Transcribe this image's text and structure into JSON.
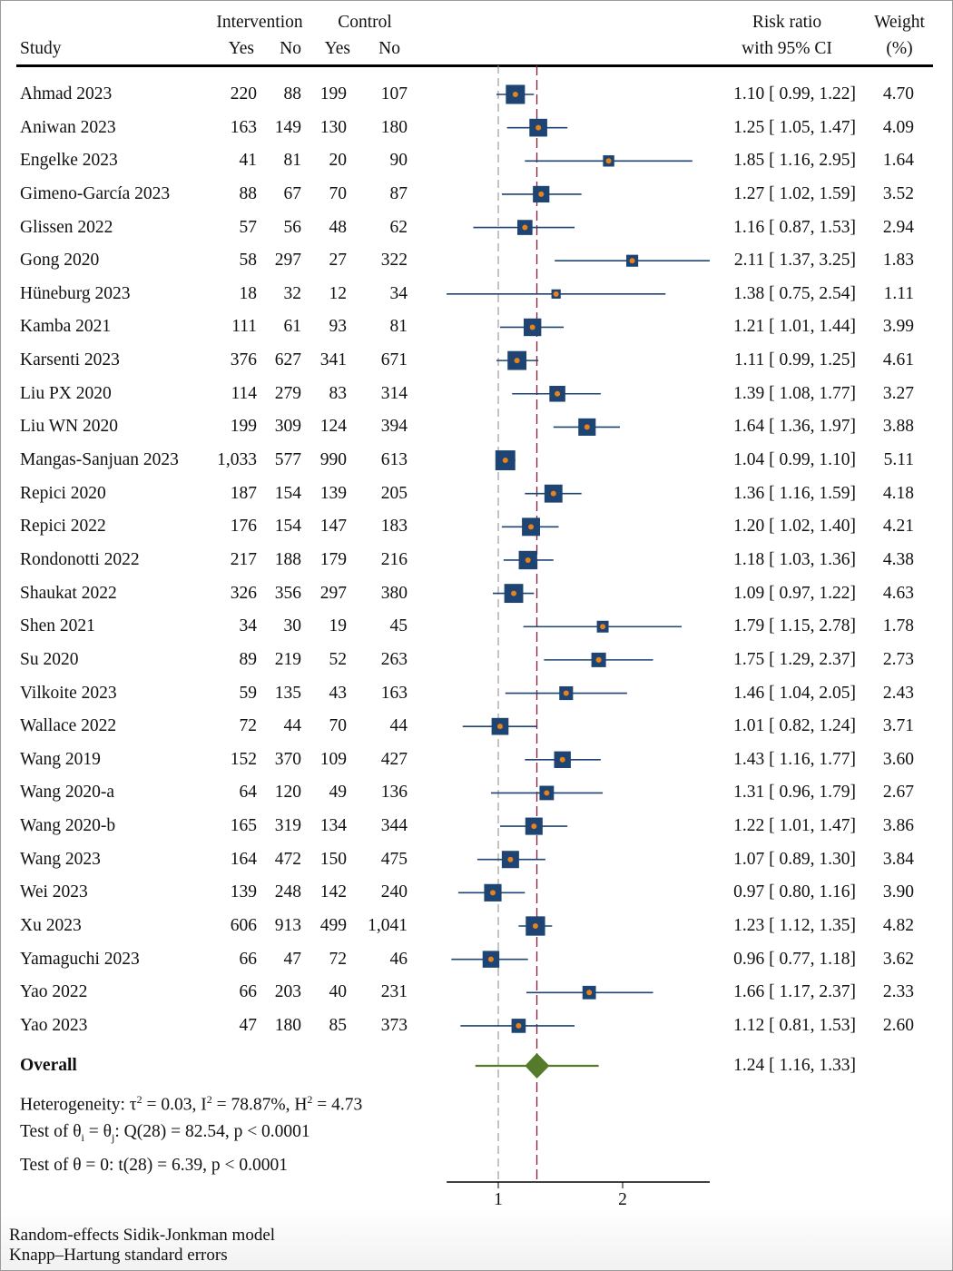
{
  "chart_data": {
    "type": "forest",
    "scale": "log",
    "xlim": [
      0.75,
      3.25
    ],
    "xticks": [
      1,
      2
    ],
    "null_line": 1,
    "headers": {
      "study": "Study",
      "intervention": "Intervention",
      "control": "Control",
      "yes": "Yes",
      "no": "No",
      "rr_line1": "Risk ratio",
      "rr_line2": "with 95% CI",
      "weight_line1": "Weight",
      "weight_line2": "(%)"
    },
    "studies": [
      {
        "name": "Ahmad 2023",
        "iy": "220",
        "in": "88",
        "cy": "199",
        "cn": "107",
        "rr": 1.1,
        "lo": 0.99,
        "hi": 1.22,
        "w": 4.7
      },
      {
        "name": "Aniwan 2023",
        "iy": "163",
        "in": "149",
        "cy": "130",
        "cn": "180",
        "rr": 1.25,
        "lo": 1.05,
        "hi": 1.47,
        "w": 4.09
      },
      {
        "name": "Engelke 2023",
        "iy": "41",
        "in": "81",
        "cy": "20",
        "cn": "90",
        "rr": 1.85,
        "lo": 1.16,
        "hi": 2.95,
        "w": 1.64
      },
      {
        "name": "Gimeno-García 2023",
        "iy": "88",
        "in": "67",
        "cy": "70",
        "cn": "87",
        "rr": 1.27,
        "lo": 1.02,
        "hi": 1.59,
        "w": 3.52
      },
      {
        "name": "Glissen 2022",
        "iy": "57",
        "in": "56",
        "cy": "48",
        "cn": "62",
        "rr": 1.16,
        "lo": 0.87,
        "hi": 1.53,
        "w": 2.94
      },
      {
        "name": "Gong 2020",
        "iy": "58",
        "in": "297",
        "cy": "27",
        "cn": "322",
        "rr": 2.11,
        "lo": 1.37,
        "hi": 3.25,
        "w": 1.83
      },
      {
        "name": "Hüneburg 2023",
        "iy": "18",
        "in": "32",
        "cy": "12",
        "cn": "34",
        "rr": 1.38,
        "lo": 0.75,
        "hi": 2.54,
        "w": 1.11
      },
      {
        "name": "Kamba 2021",
        "iy": "111",
        "in": "61",
        "cy": "93",
        "cn": "81",
        "rr": 1.21,
        "lo": 1.01,
        "hi": 1.44,
        "w": 3.99
      },
      {
        "name": "Karsenti 2023",
        "iy": "376",
        "in": "627",
        "cy": "341",
        "cn": "671",
        "rr": 1.11,
        "lo": 0.99,
        "hi": 1.25,
        "w": 4.61
      },
      {
        "name": "Liu PX 2020",
        "iy": "114",
        "in": "279",
        "cy": "83",
        "cn": "314",
        "rr": 1.39,
        "lo": 1.08,
        "hi": 1.77,
        "w": 3.27
      },
      {
        "name": "Liu WN 2020",
        "iy": "199",
        "in": "309",
        "cy": "124",
        "cn": "394",
        "rr": 1.64,
        "lo": 1.36,
        "hi": 1.97,
        "w": 3.88
      },
      {
        "name": "Mangas-Sanjuan 2023",
        "iy": "1,033",
        "in": "577",
        "cy": "990",
        "cn": "613",
        "rr": 1.04,
        "lo": 0.99,
        "hi": 1.1,
        "w": 5.11
      },
      {
        "name": "Repici 2020",
        "iy": "187",
        "in": "154",
        "cy": "139",
        "cn": "205",
        "rr": 1.36,
        "lo": 1.16,
        "hi": 1.59,
        "w": 4.18
      },
      {
        "name": "Repici 2022",
        "iy": "176",
        "in": "154",
        "cy": "147",
        "cn": "183",
        "rr": 1.2,
        "lo": 1.02,
        "hi": 1.4,
        "w": 4.21
      },
      {
        "name": "Rondonotti 2022",
        "iy": "217",
        "in": "188",
        "cy": "179",
        "cn": "216",
        "rr": 1.18,
        "lo": 1.03,
        "hi": 1.36,
        "w": 4.38
      },
      {
        "name": "Shaukat 2022",
        "iy": "326",
        "in": "356",
        "cy": "297",
        "cn": "380",
        "rr": 1.09,
        "lo": 0.97,
        "hi": 1.22,
        "w": 4.63
      },
      {
        "name": "Shen 2021",
        "iy": "34",
        "in": "30",
        "cy": "19",
        "cn": "45",
        "rr": 1.79,
        "lo": 1.15,
        "hi": 2.78,
        "w": 1.78
      },
      {
        "name": "Su 2020",
        "iy": "89",
        "in": "219",
        "cy": "52",
        "cn": "263",
        "rr": 1.75,
        "lo": 1.29,
        "hi": 2.37,
        "w": 2.73
      },
      {
        "name": "Vilkoite 2023",
        "iy": "59",
        "in": "135",
        "cy": "43",
        "cn": "163",
        "rr": 1.46,
        "lo": 1.04,
        "hi": 2.05,
        "w": 2.43
      },
      {
        "name": "Wallace 2022",
        "iy": "72",
        "in": "44",
        "cy": "70",
        "cn": "44",
        "rr": 1.01,
        "lo": 0.82,
        "hi": 1.24,
        "w": 3.71
      },
      {
        "name": "Wang 2019",
        "iy": "152",
        "in": "370",
        "cy": "109",
        "cn": "427",
        "rr": 1.43,
        "lo": 1.16,
        "hi": 1.77,
        "w": 3.6
      },
      {
        "name": "Wang 2020-a",
        "iy": "64",
        "in": "120",
        "cy": "49",
        "cn": "136",
        "rr": 1.31,
        "lo": 0.96,
        "hi": 1.79,
        "w": 2.67
      },
      {
        "name": "Wang 2020-b",
        "iy": "165",
        "in": "319",
        "cy": "134",
        "cn": "344",
        "rr": 1.22,
        "lo": 1.01,
        "hi": 1.47,
        "w": 3.86
      },
      {
        "name": "Wang 2023",
        "iy": "164",
        "in": "472",
        "cy": "150",
        "cn": "475",
        "rr": 1.07,
        "lo": 0.89,
        "hi": 1.3,
        "w": 3.84
      },
      {
        "name": "Wei 2023",
        "iy": "139",
        "in": "248",
        "cy": "142",
        "cn": "240",
        "rr": 0.97,
        "lo": 0.8,
        "hi": 1.16,
        "w": 3.9
      },
      {
        "name": "Xu 2023",
        "iy": "606",
        "in": "913",
        "cy": "499",
        "cn": "1,041",
        "rr": 1.23,
        "lo": 1.12,
        "hi": 1.35,
        "w": 4.82
      },
      {
        "name": "Yamaguchi 2023",
        "iy": "66",
        "in": "47",
        "cy": "72",
        "cn": "46",
        "rr": 0.96,
        "lo": 0.77,
        "hi": 1.18,
        "w": 3.62
      },
      {
        "name": "Yao 2022",
        "iy": "66",
        "in": "203",
        "cy": "40",
        "cn": "231",
        "rr": 1.66,
        "lo": 1.17,
        "hi": 2.37,
        "w": 2.33
      },
      {
        "name": "Yao 2023",
        "iy": "47",
        "in": "180",
        "cy": "85",
        "cn": "373",
        "rr": 1.12,
        "lo": 0.81,
        "hi": 1.53,
        "w": 2.6
      }
    ],
    "overall": {
      "label": "Overall",
      "rr": 1.24,
      "lo": 1.16,
      "hi": 1.33,
      "pi_lo": 0.88,
      "pi_hi": 1.75
    },
    "stats": [
      {
        "pre": "Heterogeneity: τ",
        "s1": "2",
        "mid1": " = 0.03, I",
        "s2": "2",
        "mid2": " = 78.87%, H",
        "s3": "2",
        "post": " = 4.73"
      },
      {
        "pre": "Test of θ",
        "sub1": "i",
        "mid1": " = θ",
        "sub2": "j",
        "post": ": Q(28) = 82.54, p < 0.0001"
      },
      {
        "text": "Test of θ = 0: t(28) = 6.39, p < 0.0001"
      }
    ],
    "footnotes": [
      "Random-effects Sidik-Jonkman model",
      "Knapp–Hartung standard errors"
    ],
    "colors": {
      "box": "#1d4472",
      "dot": "#e8821a",
      "diamond": "#557a2a",
      "overall_line": "#8b1a3a",
      "null_line": "#888888"
    }
  }
}
